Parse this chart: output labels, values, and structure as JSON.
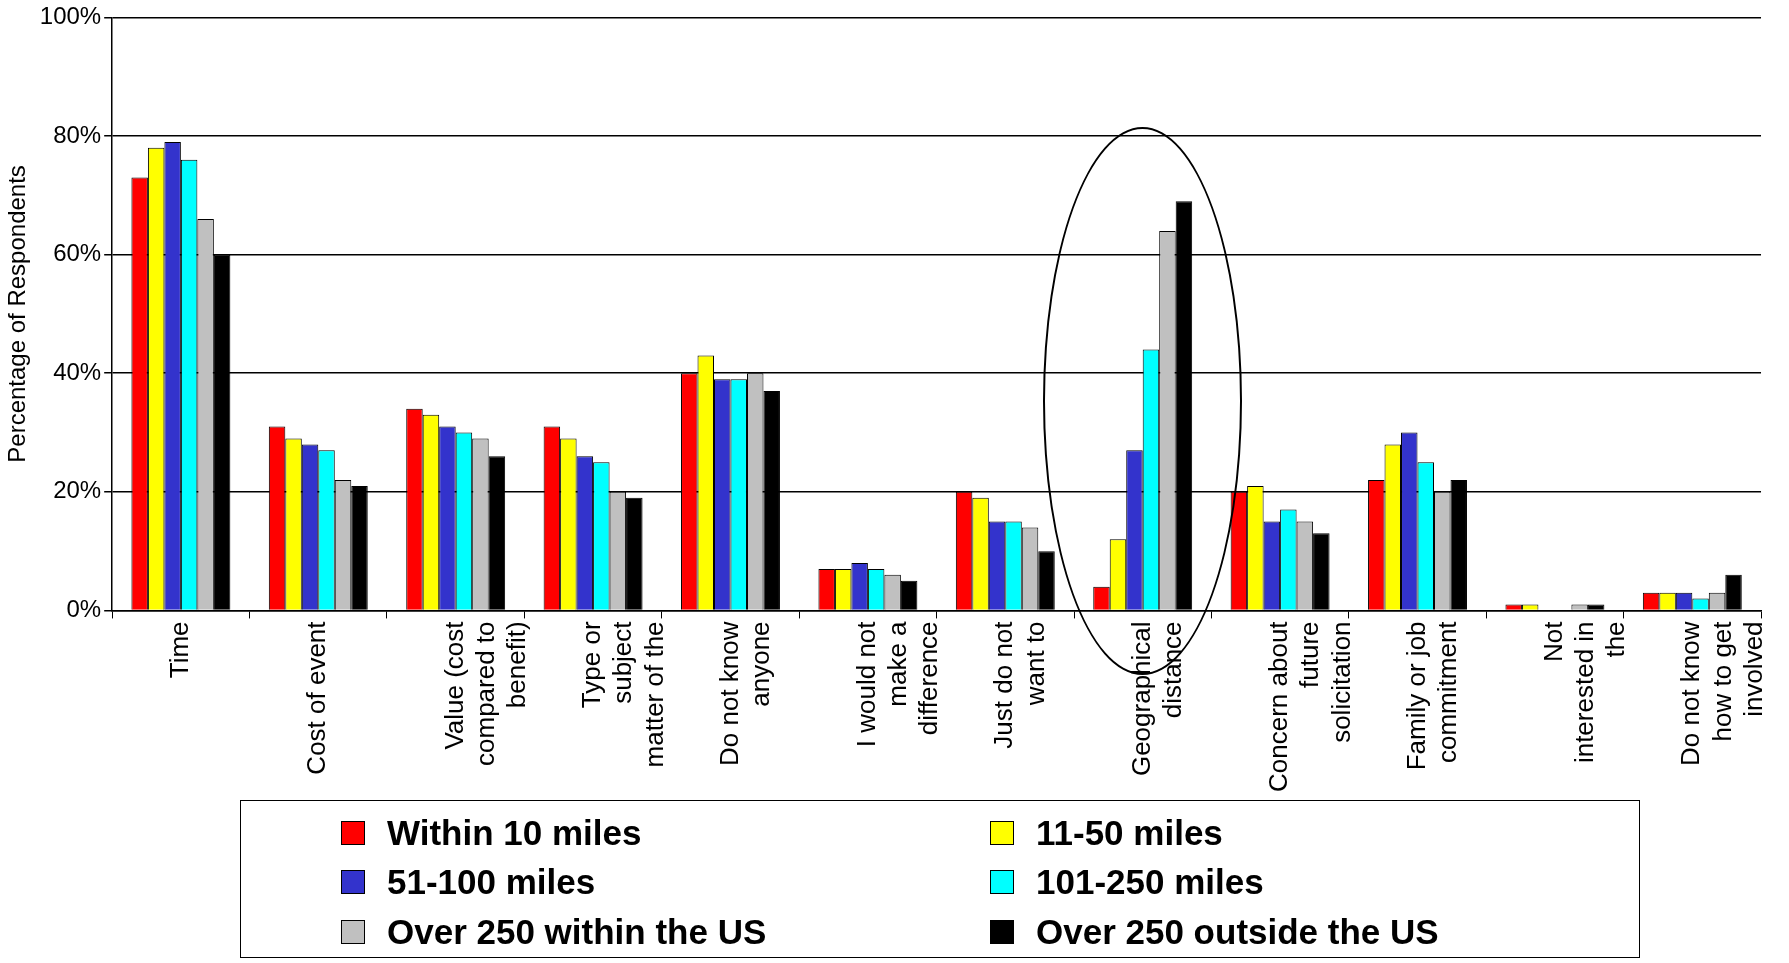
{
  "chart_data": {
    "type": "bar",
    "ylabel": "Percentage of Respondents",
    "categories": [
      "Time",
      "Cost of event",
      "Value (cost compared to benefit)",
      "Type or subject matter of the",
      "Do not know anyone",
      "I would not make a difference",
      "Just do not want to",
      "Geographical distance",
      "Concern about future solicitation",
      "Family or job commitment",
      "Not interested in the",
      "Do not know how to get involved"
    ],
    "series": [
      {
        "name": "Within 10 miles",
        "color": "#ff0000",
        "values": [
          73,
          31,
          34,
          31,
          40,
          7,
          20,
          4,
          20,
          22,
          1,
          3
        ]
      },
      {
        "name": "11-50 miles",
        "color": "#ffff00",
        "values": [
          78,
          29,
          33,
          29,
          43,
          7,
          19,
          12,
          21,
          28,
          1,
          3
        ]
      },
      {
        "name": "51-100 miles",
        "color": "#3333cc",
        "values": [
          79,
          28,
          31,
          26,
          39,
          8,
          15,
          27,
          15,
          30,
          0,
          3
        ]
      },
      {
        "name": "101-250 miles",
        "color": "#00ffff",
        "values": [
          76,
          27,
          30,
          25,
          39,
          7,
          15,
          44,
          17,
          25,
          0,
          2
        ]
      },
      {
        "name": "Over 250 within the US",
        "color": "#c0c0c0",
        "values": [
          66,
          22,
          29,
          20,
          40,
          6,
          14,
          64,
          15,
          20,
          1,
          3
        ]
      },
      {
        "name": "Over 250 outside the US",
        "color": "#000000",
        "values": [
          60,
          21,
          26,
          19,
          37,
          5,
          10,
          69,
          13,
          22,
          1,
          6
        ]
      }
    ],
    "ylim": [
      0,
      100
    ],
    "yticks": [
      {
        "value": 0,
        "label": "0%"
      },
      {
        "value": 20,
        "label": "20%"
      },
      {
        "value": 40,
        "label": "40%"
      },
      {
        "value": 60,
        "label": "60%"
      },
      {
        "value": 80,
        "label": "80%"
      },
      {
        "value": 100,
        "label": "100%"
      }
    ],
    "grid": "y",
    "legend": "bottom"
  }
}
